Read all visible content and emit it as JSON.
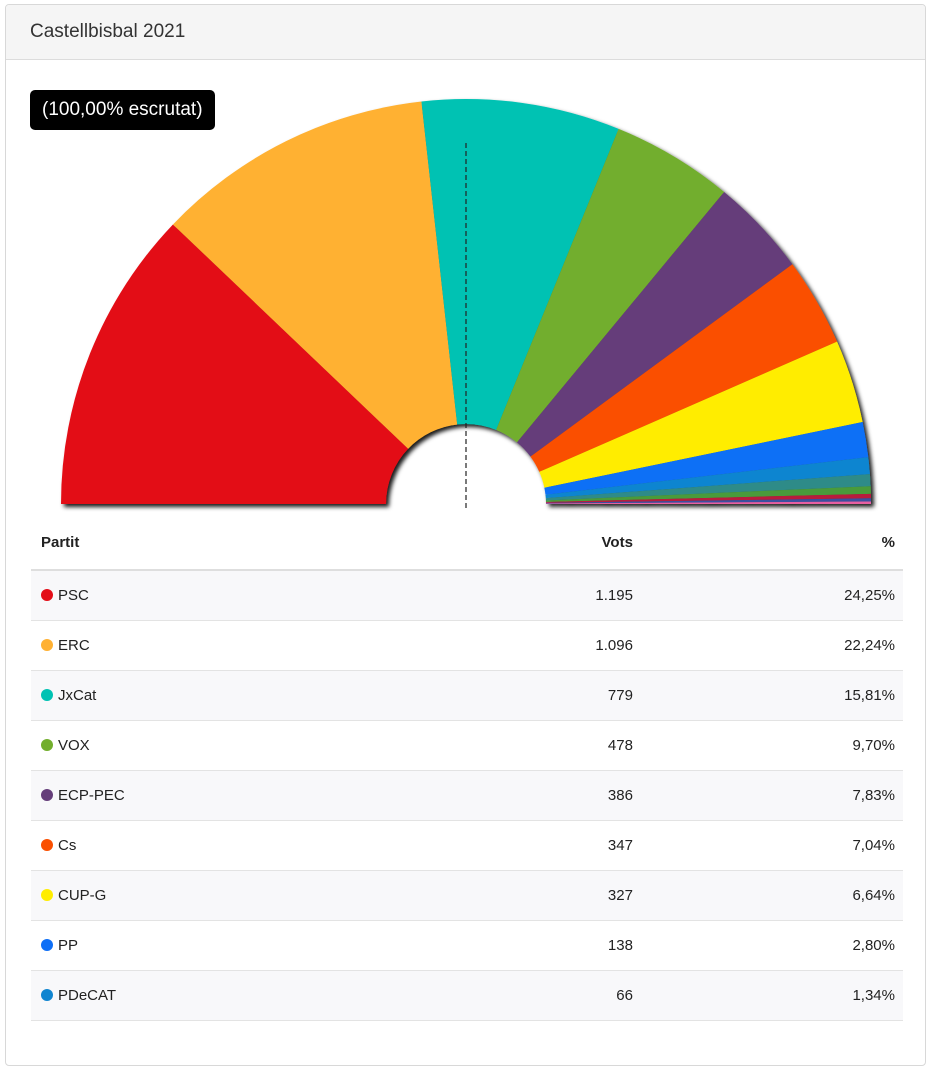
{
  "card": {
    "title": "Castellbisbal 2021"
  },
  "status": {
    "scrutiny": "(100,00% escrutat)"
  },
  "table": {
    "headers": {
      "party": "Partit",
      "votes": "Vots",
      "pct": "%"
    },
    "rows": [
      {
        "party": "PSC",
        "votes": "1.195",
        "pct": "24,25%",
        "color": "#e30e18"
      },
      {
        "party": "ERC",
        "votes": "1.096",
        "pct": "22,24%",
        "color": "#ffb133"
      },
      {
        "party": "JxCat",
        "votes": "779",
        "pct": "15,81%",
        "color": "#00c2b3"
      },
      {
        "party": "VOX",
        "votes": "478",
        "pct": "9,70%",
        "color": "#72ae2d"
      },
      {
        "party": "ECP-PEC",
        "votes": "386",
        "pct": "7,83%",
        "color": "#653e7a"
      },
      {
        "party": "Cs",
        "votes": "347",
        "pct": "7,04%",
        "color": "#fa4f00"
      },
      {
        "party": "CUP-G",
        "votes": "327",
        "pct": "6,64%",
        "color": "#ffed00"
      },
      {
        "party": "PP",
        "votes": "138",
        "pct": "2,80%",
        "color": "#0e6ff6"
      },
      {
        "party": "PDeCAT",
        "votes": "66",
        "pct": "1,34%",
        "color": "#1085d0"
      }
    ]
  },
  "chart_data": {
    "type": "pie",
    "variant": "semicircle-donut",
    "midline": "dashed",
    "series": [
      {
        "name": "PSC",
        "value": 24.25,
        "color": "#e30e18"
      },
      {
        "name": "ERC",
        "value": 22.24,
        "color": "#ffb133"
      },
      {
        "name": "JxCat",
        "value": 15.81,
        "color": "#00c2b3"
      },
      {
        "name": "VOX",
        "value": 9.7,
        "color": "#72ae2d"
      },
      {
        "name": "ECP-PEC",
        "value": 7.83,
        "color": "#653e7a"
      },
      {
        "name": "Cs",
        "value": 7.04,
        "color": "#fa4f00"
      },
      {
        "name": "CUP-G",
        "value": 6.64,
        "color": "#ffed00"
      },
      {
        "name": "PP",
        "value": 2.8,
        "color": "#0e6ff6"
      },
      {
        "name": "PDeCAT",
        "value": 1.34,
        "color": "#1085d0"
      },
      {
        "value": 0.95,
        "color": "#2f8b88"
      },
      {
        "value": 0.6,
        "color": "#4a9b3a"
      },
      {
        "value": 0.35,
        "color": "#b81d3c"
      },
      {
        "value": 0.25,
        "color": "#3a4fa0"
      },
      {
        "value": 0.2,
        "color": "#e85fa1"
      }
    ]
  }
}
